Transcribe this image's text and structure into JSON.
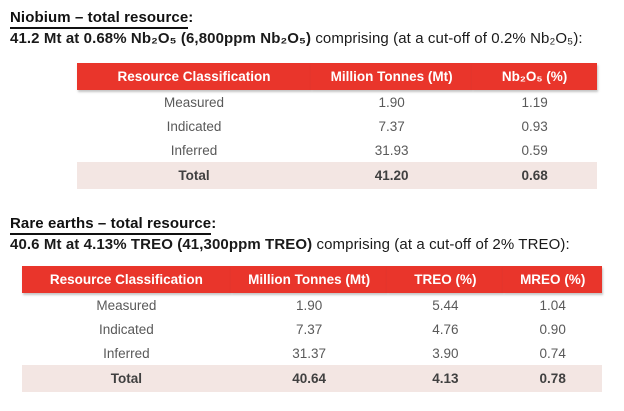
{
  "colors": {
    "table_header_bg": "#e9352b",
    "table_header_text": "#ffffff",
    "total_row_bg": "#f3e6e3",
    "body_text": "#595959",
    "total_text": "#404040",
    "title_text": "#111111",
    "page_bg": "#ffffff"
  },
  "sections": [
    {
      "title": "Niobium – total resource",
      "title_colon": ":",
      "summary_bold": "41.2 Mt at 0.68% Nb₂O₅ (6,800ppm Nb₂O₅)",
      "summary_rest": " comprising (at a cut-off of 0.2% Nb₂O₅):",
      "table": {
        "columns": [
          "Resource Classification",
          "Million Tonnes (Mt)",
          "Nb₂O₅ (%)"
        ],
        "rows": [
          [
            "Measured",
            "1.90",
            "1.19"
          ],
          [
            "Indicated",
            "7.37",
            "0.93"
          ],
          [
            "Inferred",
            "31.93",
            "0.59"
          ]
        ],
        "total": [
          "Total",
          "41.20",
          "0.68"
        ]
      }
    },
    {
      "title": "Rare earths – total resource",
      "title_colon": ":",
      "summary_bold": "40.6 Mt at 4.13% TREO (41,300ppm TREO)",
      "summary_rest": " comprising (at a cut-off of 2% TREO):",
      "table": {
        "columns": [
          "Resource Classification",
          "Million Tonnes (Mt)",
          "TREO (%)",
          "MREO (%)"
        ],
        "rows": [
          [
            "Measured",
            "1.90",
            "5.44",
            "1.04"
          ],
          [
            "Indicated",
            "7.37",
            "4.76",
            "0.90"
          ],
          [
            "Inferred",
            "31.37",
            "3.90",
            "0.74"
          ]
        ],
        "total": [
          "Total",
          "40.64",
          "4.13",
          "0.78"
        ]
      }
    }
  ]
}
